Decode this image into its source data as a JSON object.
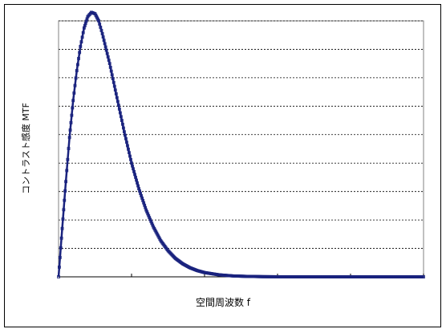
{
  "chart_data": {
    "type": "scatter",
    "xlabel": "空間周波数 f",
    "ylabel": "コントラスト感度 MTF",
    "title": "",
    "xlim": [
      0,
      5
    ],
    "ylim": [
      0,
      9
    ],
    "x_ticks": [
      0,
      1,
      2,
      3,
      4,
      5
    ],
    "y_gridlines": [
      1,
      2,
      3,
      4,
      5,
      6,
      7,
      8,
      9
    ],
    "grid": "horizontal dashed",
    "legend": "none",
    "peak": {
      "x": 0.45,
      "y": 9.3
    },
    "series": [
      {
        "marker_color": "#1a237e",
        "points": [
          [
            0.0,
            0.0
          ],
          [
            0.05,
            1.7
          ],
          [
            0.1,
            3.35
          ],
          [
            0.15,
            4.9
          ],
          [
            0.2,
            6.2
          ],
          [
            0.25,
            7.25
          ],
          [
            0.3,
            8.1
          ],
          [
            0.35,
            8.75
          ],
          [
            0.4,
            9.15
          ],
          [
            0.45,
            9.3
          ],
          [
            0.5,
            9.25
          ],
          [
            0.55,
            9.0
          ],
          [
            0.6,
            8.55
          ],
          [
            0.7,
            7.5
          ],
          [
            0.8,
            6.3
          ],
          [
            0.9,
            5.1
          ],
          [
            1.0,
            4.0
          ],
          [
            1.1,
            3.1
          ],
          [
            1.2,
            2.35
          ],
          [
            1.3,
            1.75
          ],
          [
            1.4,
            1.27
          ],
          [
            1.5,
            0.92
          ],
          [
            1.6,
            0.65
          ],
          [
            1.7,
            0.46
          ],
          [
            1.8,
            0.32
          ],
          [
            1.9,
            0.22
          ],
          [
            2.0,
            0.15
          ],
          [
            2.2,
            0.07
          ],
          [
            2.4,
            0.03
          ],
          [
            2.6,
            0.015
          ],
          [
            2.8,
            0.006
          ],
          [
            3.0,
            0.003
          ],
          [
            3.5,
            0.0
          ],
          [
            4.0,
            0.0
          ],
          [
            4.5,
            0.0
          ],
          [
            5.0,
            0.0
          ]
        ]
      }
    ]
  }
}
